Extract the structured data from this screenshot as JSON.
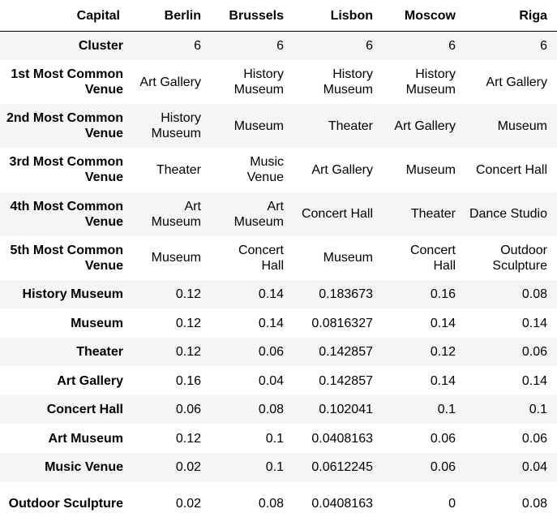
{
  "table": {
    "index_header": "Capital",
    "columns": [
      "Berlin",
      "Brussels",
      "Lisbon",
      "Moscow",
      "Riga"
    ],
    "rows": [
      {
        "label": "Cluster",
        "cells": [
          "6",
          "6",
          "6",
          "6",
          "6"
        ]
      },
      {
        "label": "1st Most Common Venue",
        "cells": [
          "Art Gallery",
          "History Museum",
          "History Museum",
          "History Museum",
          "Art Gallery"
        ]
      },
      {
        "label": "2nd Most Common Venue",
        "cells": [
          "History Museum",
          "Museum",
          "Theater",
          "Art Gallery",
          "Museum"
        ]
      },
      {
        "label": "3rd Most Common Venue",
        "cells": [
          "Theater",
          "Music Venue",
          "Art Gallery",
          "Museum",
          "Concert Hall"
        ]
      },
      {
        "label": "4th Most Common Venue",
        "cells": [
          "Art Museum",
          "Art Museum",
          "Concert Hall",
          "Theater",
          "Dance Studio"
        ]
      },
      {
        "label": "5th Most Common Venue",
        "cells": [
          "Museum",
          "Concert Hall",
          "Museum",
          "Concert Hall",
          "Outdoor Sculpture"
        ]
      },
      {
        "label": "History Museum",
        "cells": [
          "0.12",
          "0.14",
          "0.183673",
          "0.16",
          "0.08"
        ]
      },
      {
        "label": "Museum",
        "cells": [
          "0.12",
          "0.14",
          "0.0816327",
          "0.14",
          "0.14"
        ]
      },
      {
        "label": "Theater",
        "cells": [
          "0.12",
          "0.06",
          "0.142857",
          "0.12",
          "0.06"
        ]
      },
      {
        "label": "Art Gallery",
        "cells": [
          "0.16",
          "0.04",
          "0.142857",
          "0.14",
          "0.14"
        ]
      },
      {
        "label": "Concert Hall",
        "cells": [
          "0.06",
          "0.08",
          "0.102041",
          "0.1",
          "0.1"
        ]
      },
      {
        "label": "Art Museum",
        "cells": [
          "0.12",
          "0.1",
          "0.0408163",
          "0.06",
          "0.06"
        ]
      },
      {
        "label": "Music Venue",
        "cells": [
          "0.02",
          "0.1",
          "0.0612245",
          "0.06",
          "0.04"
        ]
      },
      {
        "label": "Outdoor Sculpture",
        "cells": [
          "0.02",
          "0.08",
          "0.0408163",
          "0",
          "0.08"
        ]
      }
    ]
  },
  "colors": {
    "stripe": "#f5f5f5",
    "background": "#ffffff",
    "text": "#000000",
    "header_rule": "#000000"
  }
}
